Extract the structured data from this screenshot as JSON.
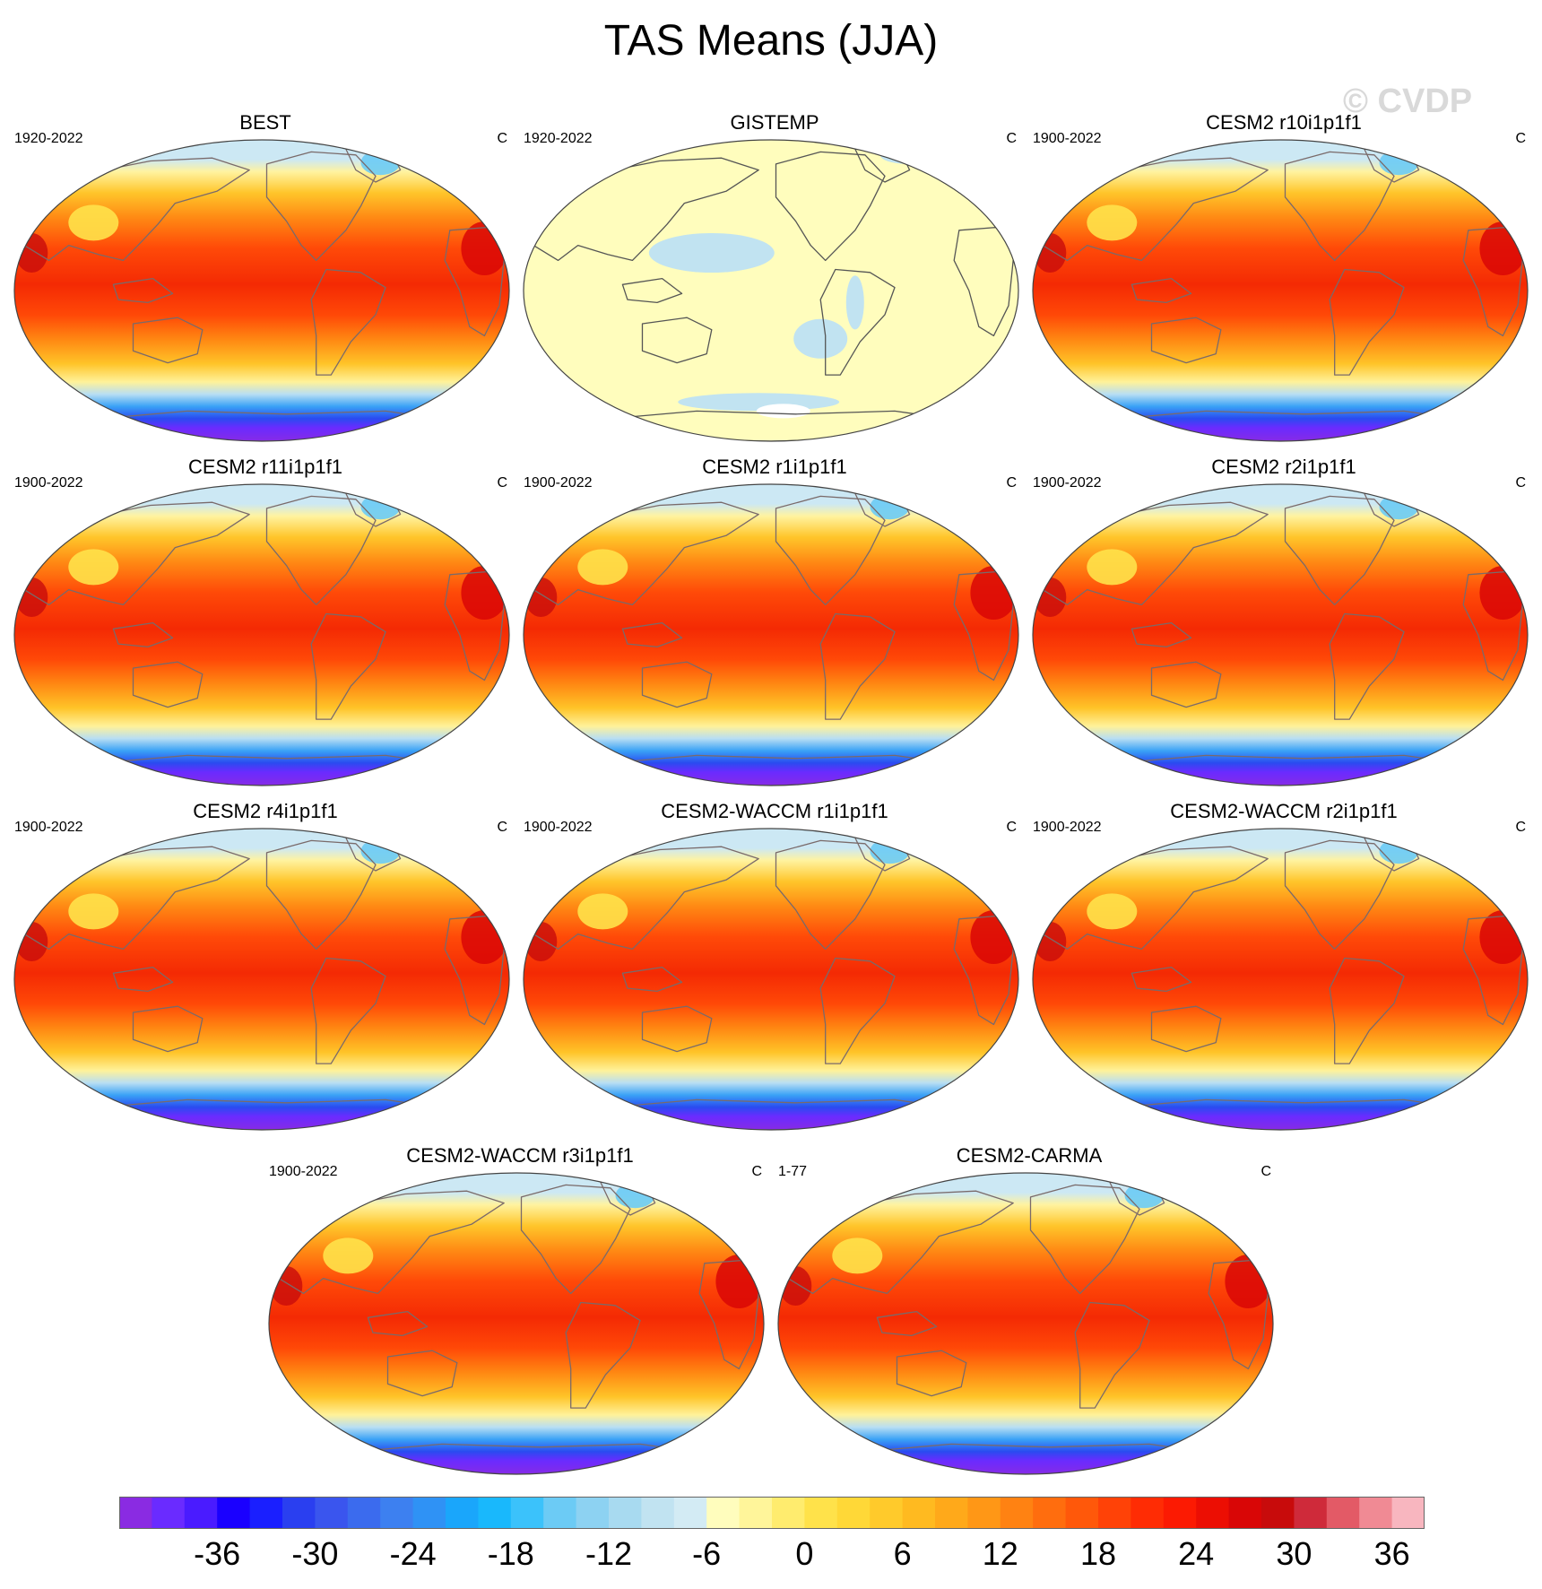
{
  "title": "TAS Means (JJA)",
  "watermark": "© CVDP",
  "panels": [
    {
      "title": "BEST",
      "period": "1920-2022",
      "units": "C",
      "style": "warm"
    },
    {
      "title": "GISTEMP",
      "period": "1920-2022",
      "units": "C",
      "style": "pale"
    },
    {
      "title": "CESM2 r10i1p1f1",
      "period": "1900-2022",
      "units": "C",
      "style": "warm"
    },
    {
      "title": "CESM2 r11i1p1f1",
      "period": "1900-2022",
      "units": "C",
      "style": "warm"
    },
    {
      "title": "CESM2 r1i1p1f1",
      "period": "1900-2022",
      "units": "C",
      "style": "warm"
    },
    {
      "title": "CESM2 r2i1p1f1",
      "period": "1900-2022",
      "units": "C",
      "style": "warm"
    },
    {
      "title": "CESM2 r4i1p1f1",
      "period": "1900-2022",
      "units": "C",
      "style": "warm"
    },
    {
      "title": "CESM2-WACCM r1i1p1f1",
      "period": "1900-2022",
      "units": "C",
      "style": "warm"
    },
    {
      "title": "CESM2-WACCM r2i1p1f1",
      "period": "1900-2022",
      "units": "C",
      "style": "warm"
    },
    {
      "title": "CESM2-WACCM r3i1p1f1",
      "period": "1900-2022",
      "units": "C",
      "style": "warm"
    },
    {
      "title": "CESM2-CARMA",
      "period": "1-77",
      "units": "C",
      "style": "warm"
    }
  ],
  "colorbar": {
    "labels": [
      "-36",
      "-30",
      "-24",
      "-18",
      "-12",
      "-6",
      "0",
      "6",
      "12",
      "18",
      "24",
      "30",
      "36"
    ],
    "colors": [
      "#8a2be2",
      "#6a2bff",
      "#4a1bff",
      "#1a00ff",
      "#1a1fff",
      "#2a3ff0",
      "#3a55ee",
      "#3b6bee",
      "#3d80f0",
      "#2f92f5",
      "#1aa6fb",
      "#19b8fc",
      "#3bc2fb",
      "#6ccbf5",
      "#8dd2f2",
      "#a8daf0",
      "#c1e3f1",
      "#d3ebf4",
      "#fffdbd",
      "#fff59a",
      "#ffec6e",
      "#ffe24a",
      "#ffd837",
      "#ffca2b",
      "#ffba20",
      "#ffa91a",
      "#ff9716",
      "#ff8212",
      "#ff6d0e",
      "#ff580a",
      "#ff4207",
      "#ff2c04",
      "#fc1a02",
      "#ec0e03",
      "#d90606",
      "#c80b0b",
      "#cf2a3a",
      "#e35a66",
      "#f08a94",
      "#f8b6bf"
    ]
  }
}
